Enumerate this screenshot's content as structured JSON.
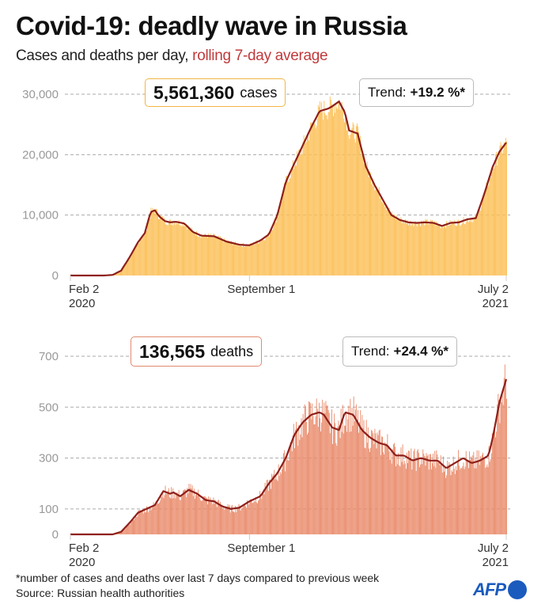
{
  "header": {
    "title": "Covid-19: deadly wave in Russia",
    "subtitle_plain": "Cases and deaths per day, ",
    "subtitle_highlight": "rolling 7-day average"
  },
  "colors": {
    "cases_bar": "#fbbf55",
    "deaths_bar": "#e98a6a",
    "average_line": "#8e1f1a",
    "cases_box_border": "#f2b545",
    "deaths_box_border": "#e08a70",
    "subtitle_highlight": "#c0393b",
    "afp_blue": "#1a5bbd"
  },
  "footer": {
    "note": "*number of cases and deaths over last 7 days compared to previous week",
    "source": "Source: Russian health authorities",
    "logo_text": "AFP"
  },
  "chart_data": [
    {
      "type": "bar",
      "name": "cases",
      "title": "Daily cases",
      "total_value": "5,561,360",
      "total_label": "cases",
      "trend_label": "Trend:",
      "trend_value": "+19.2 %*",
      "ylim": [
        0,
        30000
      ],
      "yticks": [
        "0",
        "10,000",
        "20,000",
        "30,000"
      ],
      "ytick_values": [
        0,
        10000,
        20000,
        30000
      ],
      "xticks": [
        {
          "day": 0,
          "line1": "Feb 2",
          "line2": "2020",
          "align": "start"
        },
        {
          "day": 212,
          "line1": "September 1",
          "line2": "",
          "align": "middle"
        },
        {
          "day": 516,
          "line1": "July 2",
          "line2": "2021",
          "align": "end"
        }
      ],
      "x_start": "2020-02-02",
      "x_end": "2021-07-02",
      "grid": true,
      "series": [
        {
          "name": "rolling 7-day average",
          "days": [
            0,
            40,
            50,
            60,
            70,
            80,
            88,
            95,
            100,
            105,
            112,
            118,
            125,
            135,
            145,
            155,
            170,
            185,
            200,
            212,
            225,
            235,
            245,
            255,
            265,
            275,
            285,
            295,
            305,
            310,
            318,
            325,
            330,
            340,
            350,
            360,
            370,
            380,
            390,
            400,
            410,
            420,
            430,
            440,
            450,
            460,
            470,
            480,
            490,
            500,
            508,
            516
          ],
          "values": [
            0,
            0,
            100,
            800,
            3000,
            5500,
            7000,
            10500,
            10800,
            9800,
            9000,
            8800,
            8900,
            8600,
            7200,
            6600,
            6500,
            5600,
            5100,
            5000,
            5800,
            6800,
            10000,
            15500,
            18500,
            21500,
            24500,
            27200,
            27600,
            28000,
            28800,
            27000,
            24000,
            23500,
            18000,
            15000,
            12500,
            10000,
            9200,
            8800,
            8700,
            8800,
            8700,
            8200,
            8700,
            8800,
            9300,
            9500,
            13500,
            18000,
            20500,
            22000
          ]
        }
      ]
    },
    {
      "type": "bar",
      "name": "deaths",
      "title": "Daily deaths",
      "total_value": "136,565",
      "total_label": "deaths",
      "trend_label": "Trend:",
      "trend_value": "+24.4 %*",
      "ylim": [
        0,
        700
      ],
      "yticks": [
        "0",
        "100",
        "300",
        "500",
        "700"
      ],
      "ytick_values": [
        0,
        100,
        300,
        500,
        700
      ],
      "xticks": [
        {
          "day": 0,
          "line1": "Feb 2",
          "line2": "2020",
          "align": "start"
        },
        {
          "day": 212,
          "line1": "September 1",
          "line2": "",
          "align": "middle"
        },
        {
          "day": 516,
          "line1": "July 2",
          "line2": "2021",
          "align": "end"
        }
      ],
      "x_start": "2020-02-02",
      "x_end": "2021-07-02",
      "grid": true,
      "series": [
        {
          "name": "rolling 7-day average",
          "days": [
            0,
            50,
            60,
            70,
            80,
            90,
            100,
            110,
            118,
            122,
            130,
            140,
            150,
            160,
            170,
            180,
            190,
            200,
            212,
            225,
            235,
            245,
            255,
            265,
            275,
            285,
            295,
            300,
            310,
            318,
            325,
            335,
            345,
            355,
            365,
            375,
            385,
            395,
            405,
            415,
            425,
            435,
            445,
            455,
            465,
            475,
            485,
            495,
            500,
            508,
            516
          ],
          "values": [
            0,
            0,
            10,
            45,
            85,
            100,
            115,
            170,
            160,
            165,
            150,
            175,
            160,
            135,
            130,
            110,
            100,
            105,
            130,
            150,
            200,
            240,
            300,
            390,
            440,
            470,
            480,
            470,
            420,
            410,
            480,
            470,
            410,
            380,
            360,
            350,
            310,
            310,
            290,
            300,
            290,
            290,
            260,
            280,
            300,
            280,
            290,
            310,
            380,
            520,
            610
          ]
        }
      ]
    }
  ]
}
